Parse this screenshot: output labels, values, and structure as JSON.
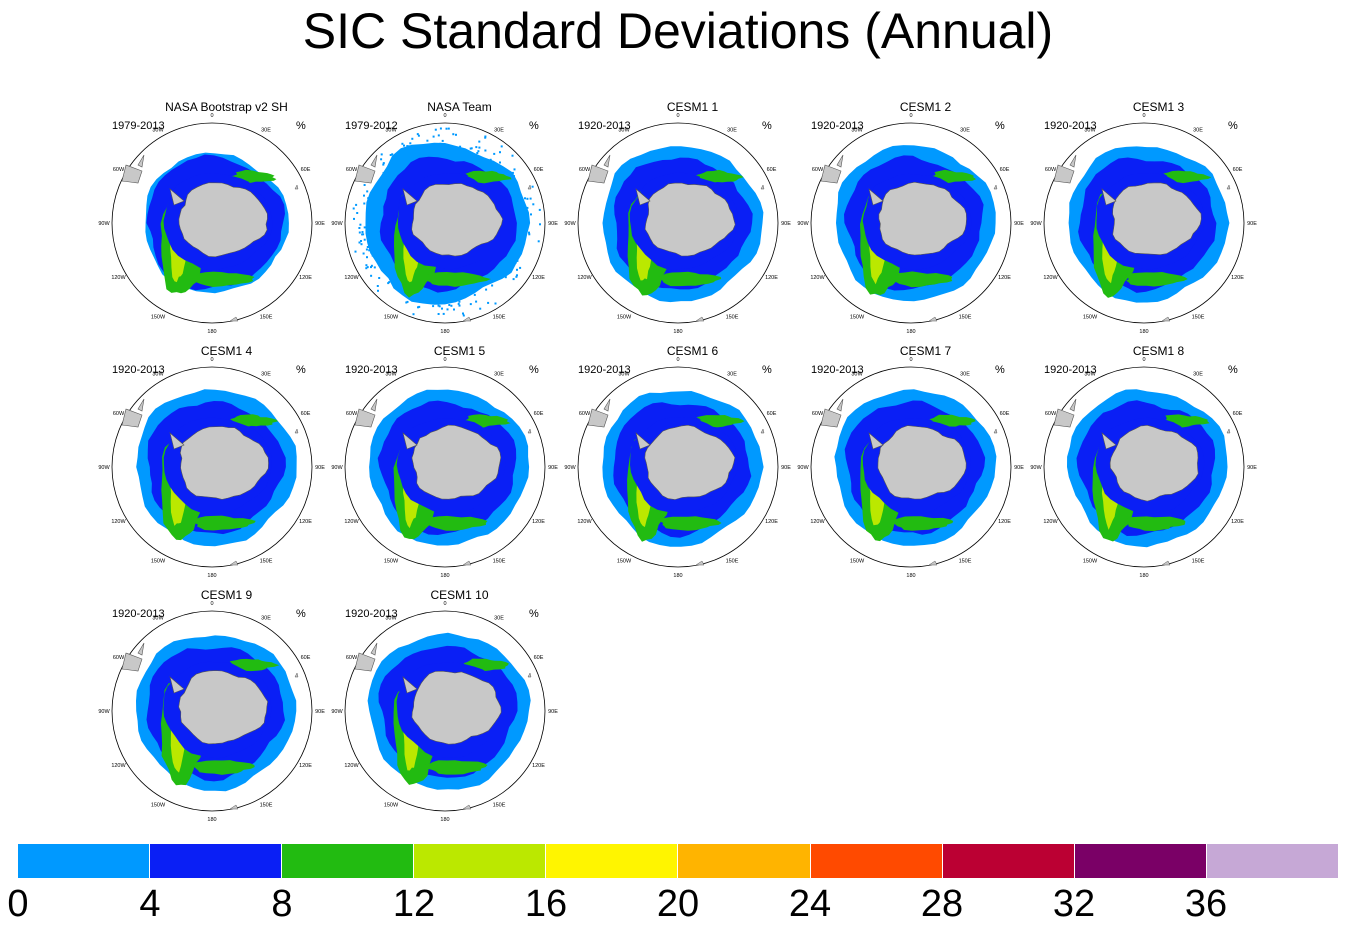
{
  "title": "SIC Standard Deviations (Annual)",
  "unit": "%",
  "panels": [
    {
      "title": "NASA Bootstrap v2 SH",
      "years": "1979-2013",
      "noisy": false
    },
    {
      "title": "NASA Team",
      "years": "1979-2012",
      "noisy": true
    },
    {
      "title": "CESM1 1",
      "years": "1920-2013",
      "noisy": false
    },
    {
      "title": "CESM1 2",
      "years": "1920-2013",
      "noisy": false
    },
    {
      "title": "CESM1 3",
      "years": "1920-2013",
      "noisy": false
    },
    {
      "title": "CESM1 4",
      "years": "1920-2013",
      "noisy": false
    },
    {
      "title": "CESM1 5",
      "years": "1920-2013",
      "noisy": false
    },
    {
      "title": "CESM1 6",
      "years": "1920-2013",
      "noisy": false
    },
    {
      "title": "CESM1 7",
      "years": "1920-2013",
      "noisy": false
    },
    {
      "title": "CESM1 8",
      "years": "1920-2013",
      "noisy": false
    },
    {
      "title": "CESM1 9",
      "years": "1920-2013",
      "noisy": false
    },
    {
      "title": "CESM1 10",
      "years": "1920-2013",
      "noisy": false
    }
  ],
  "longitude_labels": [
    "0",
    "30E",
    "60E",
    "90E",
    "120E",
    "150E",
    "180",
    "150W",
    "120W",
    "90W",
    "60W",
    "30W"
  ],
  "colorbar": {
    "labels": [
      "0",
      "4",
      "8",
      "12",
      "16",
      "20",
      "24",
      "28",
      "32",
      "36"
    ],
    "colors": [
      "#0099ff",
      "#0a1ff5",
      "#22bb11",
      "#bbe800",
      "#fff500",
      "#ffb400",
      "#ff4a00",
      "#bb0033",
      "#7a0066",
      "#c6a8d6"
    ]
  },
  "map_colors": {
    "light_blue": "#0099ff",
    "dark_blue": "#0a1ff5",
    "green": "#22bb11",
    "yellow_green": "#bbe800",
    "land": "#c8c8c8"
  }
}
